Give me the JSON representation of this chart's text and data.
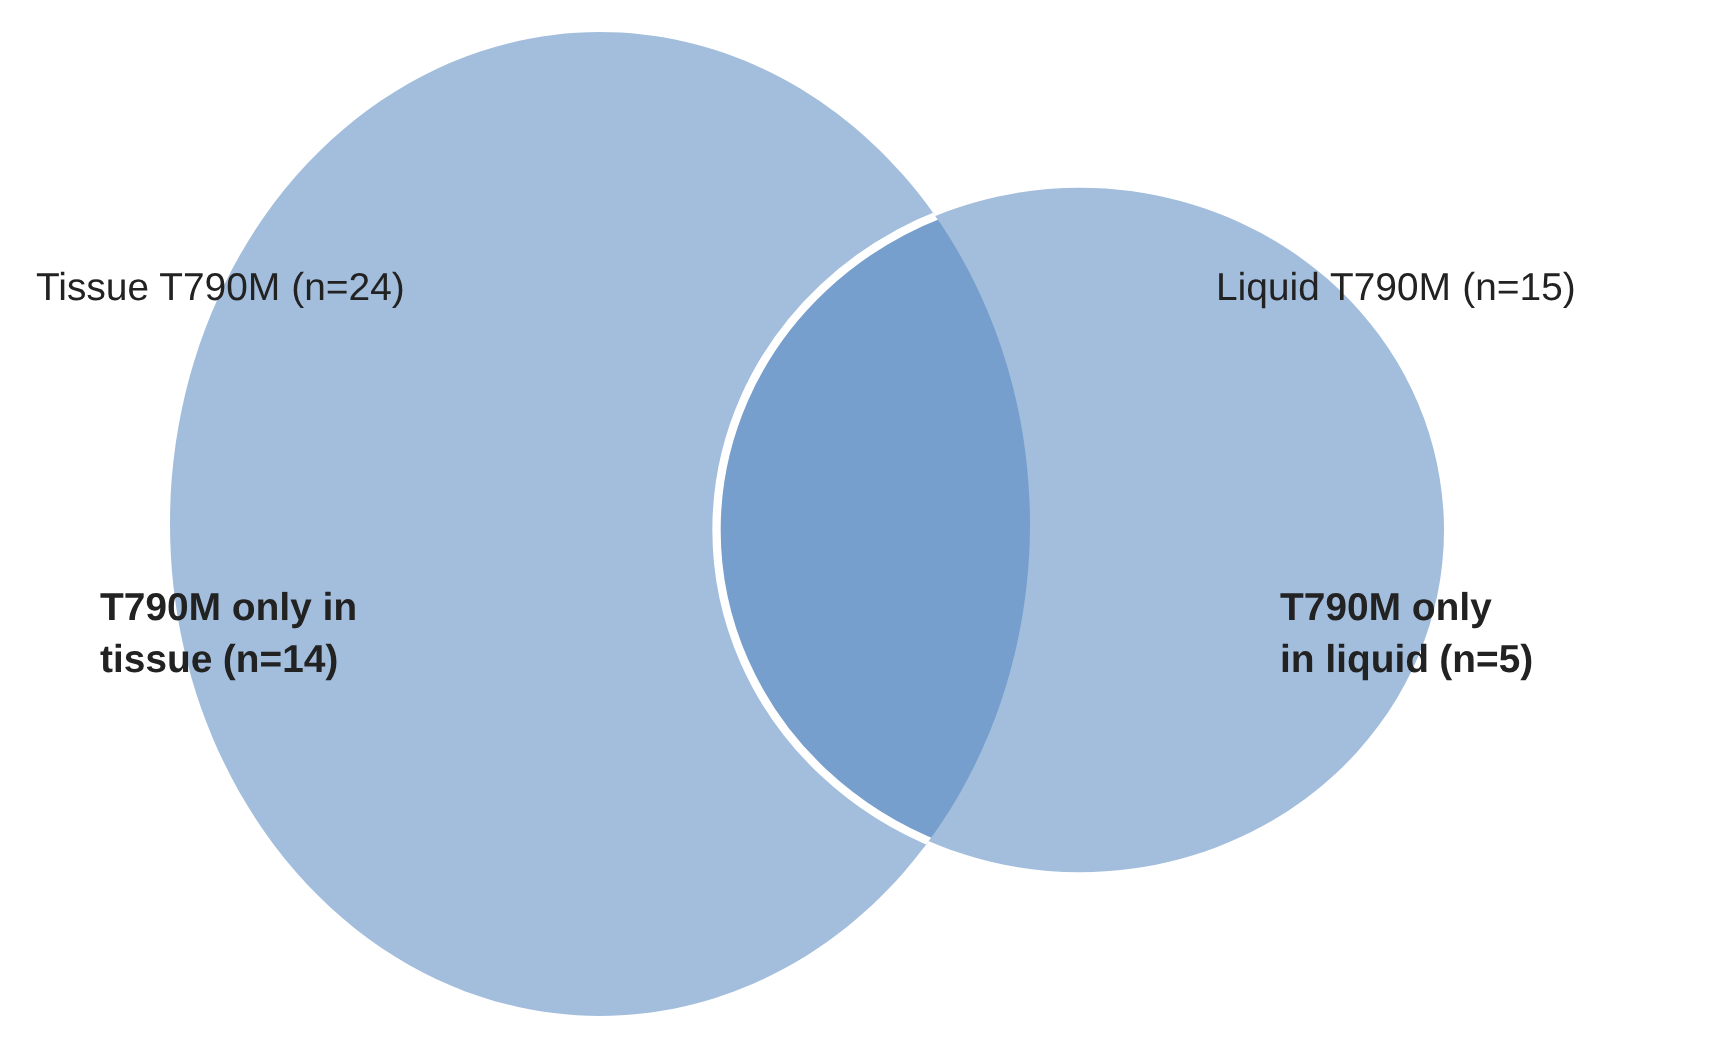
{
  "chart_data": {
    "type": "other",
    "categories": [
      "Tissue T790M",
      "Liquid T790M",
      "T790M only in\ntissue",
      "T790M only\nin liquid"
    ],
    "values": [
      24,
      15,
      14,
      5
    ],
    "value_labels": [
      "(n=24)",
      "(n=15)",
      "(n=14)",
      "(n=5)"
    ]
  }
}
